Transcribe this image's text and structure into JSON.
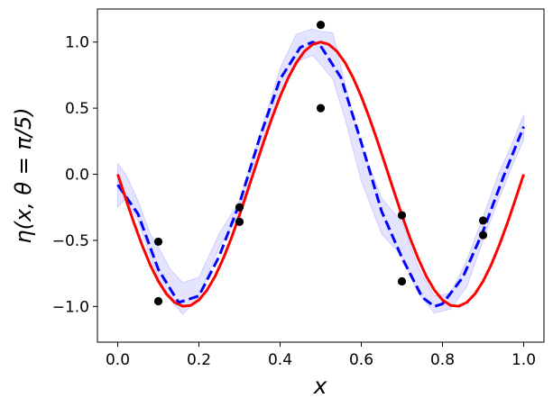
{
  "chart_data": {
    "type": "line",
    "xlabel": "x",
    "ylabel": "η(x, θ = π/5)",
    "xlim": [
      -0.05,
      1.05
    ],
    "ylim": [
      -1.27,
      1.25
    ],
    "xticks": [
      0.0,
      0.2,
      0.4,
      0.6,
      0.8,
      1.0
    ],
    "xtick_labels": [
      "0.0",
      "0.2",
      "0.4",
      "0.6",
      "0.8",
      "1.0"
    ],
    "yticks": [
      -1.0,
      -0.5,
      0.0,
      0.5,
      1.0
    ],
    "ytick_labels": [
      "−1.0",
      "−0.5",
      "0.0",
      "0.5",
      "1.0"
    ],
    "grid": false,
    "series": [
      {
        "kind": "band",
        "color": "#7a7aff",
        "opacity": 0.2,
        "x": [
          0.0,
          0.02,
          0.05,
          0.08,
          0.1,
          0.13,
          0.16,
          0.2,
          0.25,
          0.3,
          0.35,
          0.4,
          0.44,
          0.48,
          0.5,
          0.53,
          0.56,
          0.6,
          0.65,
          0.7,
          0.74,
          0.78,
          0.82,
          0.86,
          0.9,
          0.94,
          0.97,
          1.0
        ],
        "lower": [
          -0.25,
          -0.18,
          -0.35,
          -0.62,
          -0.78,
          -0.95,
          -1.06,
          -0.93,
          -0.55,
          -0.3,
          0.15,
          0.6,
          0.85,
          0.9,
          0.83,
          0.72,
          0.42,
          -0.05,
          -0.45,
          -0.62,
          -0.9,
          -1.05,
          -1.02,
          -0.85,
          -0.5,
          -0.18,
          0.05,
          0.26
        ],
        "upper": [
          0.08,
          0.0,
          -0.2,
          -0.45,
          -0.55,
          -0.72,
          -0.82,
          -0.78,
          -0.45,
          -0.2,
          0.3,
          0.8,
          1.06,
          1.1,
          1.08,
          1.07,
          0.68,
          0.22,
          -0.18,
          -0.36,
          -0.7,
          -0.92,
          -0.9,
          -0.65,
          -0.32,
          0.02,
          0.22,
          0.45
        ]
      },
      {
        "kind": "line",
        "color": "#0000ff",
        "dash": "dashed",
        "x": [
          0.0,
          0.05,
          0.1,
          0.15,
          0.2,
          0.25,
          0.3,
          0.35,
          0.4,
          0.45,
          0.48,
          0.5,
          0.55,
          0.6,
          0.65,
          0.7,
          0.75,
          0.78,
          0.8,
          0.85,
          0.9,
          0.95,
          1.0
        ],
        "y": [
          -0.08,
          -0.3,
          -0.72,
          -0.97,
          -0.92,
          -0.62,
          -0.22,
          0.28,
          0.72,
          0.96,
          1.0,
          0.97,
          0.73,
          0.24,
          -0.28,
          -0.63,
          -0.93,
          -1.0,
          -0.98,
          -0.78,
          -0.43,
          -0.02,
          0.36
        ]
      },
      {
        "kind": "line",
        "color": "#ff0000",
        "dash": "solid",
        "x": [
          0.0,
          0.02,
          0.04,
          0.06,
          0.08,
          0.1,
          0.12,
          0.14,
          0.16,
          0.18,
          0.2,
          0.22,
          0.24,
          0.26,
          0.28,
          0.3,
          0.32,
          0.34,
          0.36,
          0.38,
          0.4,
          0.42,
          0.44,
          0.46,
          0.48,
          0.5,
          0.52,
          0.54,
          0.56,
          0.58,
          0.6,
          0.62,
          0.64,
          0.66,
          0.68,
          0.7,
          0.72,
          0.74,
          0.76,
          0.78,
          0.8,
          0.82,
          0.84,
          0.86,
          0.88,
          0.9,
          0.92,
          0.94,
          0.96,
          0.98,
          1.0
        ],
        "y": [
          0.0,
          -0.187,
          -0.368,
          -0.536,
          -0.685,
          -0.809,
          -0.905,
          -0.969,
          -0.998,
          -0.992,
          -0.951,
          -0.876,
          -0.771,
          -0.637,
          -0.482,
          -0.309,
          -0.125,
          0.063,
          0.249,
          0.426,
          0.588,
          0.729,
          0.844,
          0.93,
          0.982,
          1.0,
          0.982,
          0.93,
          0.844,
          0.729,
          0.588,
          0.426,
          0.249,
          0.063,
          -0.125,
          -0.309,
          -0.482,
          -0.637,
          -0.771,
          -0.876,
          -0.951,
          -0.992,
          -0.998,
          -0.969,
          -0.905,
          -0.809,
          -0.685,
          -0.536,
          -0.368,
          -0.187,
          0.0
        ]
      },
      {
        "kind": "scatter",
        "color": "#000000",
        "x": [
          0.1,
          0.1,
          0.3,
          0.3,
          0.5,
          0.5,
          0.7,
          0.7,
          0.9,
          0.9
        ],
        "y": [
          -0.51,
          -0.96,
          -0.25,
          -0.36,
          1.13,
          0.5,
          -0.31,
          -0.81,
          -0.35,
          -0.46
        ]
      }
    ]
  }
}
